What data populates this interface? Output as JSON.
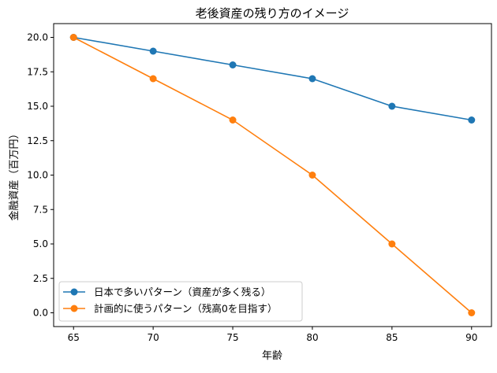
{
  "chart_data": {
    "type": "line",
    "title": "老後資産の残り方のイメージ",
    "xlabel": "年齢",
    "ylabel": "金融資産（百万円）",
    "x": [
      65,
      70,
      75,
      80,
      85,
      90
    ],
    "xlim": [
      63.75,
      91.25
    ],
    "ylim": [
      -1.0,
      21.0
    ],
    "xticks": [
      "65",
      "70",
      "75",
      "80",
      "85",
      "90"
    ],
    "yticks": [
      "0.0",
      "2.5",
      "5.0",
      "7.5",
      "10.0",
      "12.5",
      "15.0",
      "17.5",
      "20.0"
    ],
    "grid": false,
    "legend_position": "lower-left",
    "series": [
      {
        "name": "日本で多いパターン（資産が多く残る）",
        "values": [
          20,
          19,
          18,
          17,
          15,
          14
        ],
        "color": "#1f77b4",
        "marker": "circle"
      },
      {
        "name": "計画的に使うパターン（残高0を目指す）",
        "values": [
          20,
          17,
          14,
          10,
          5,
          0
        ],
        "color": "#ff7f0e",
        "marker": "circle"
      }
    ]
  }
}
